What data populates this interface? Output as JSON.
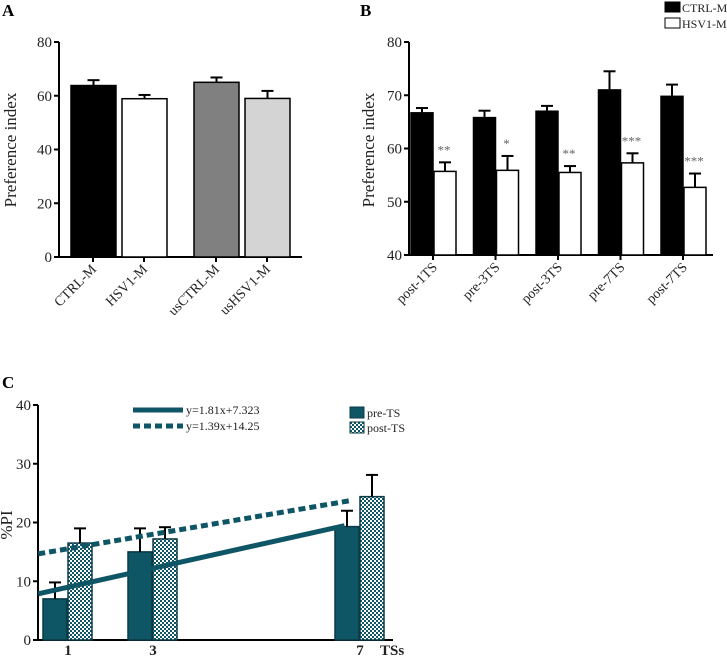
{
  "chart_data": [
    {
      "panel": "A",
      "type": "bar",
      "ylabel": "Preference index",
      "ylim": [
        0,
        80
      ],
      "yticks": [
        "0",
        "20",
        "40",
        "60",
        "80"
      ],
      "categories": [
        "CTRL-M",
        "HSV1-M",
        "usCTRL-M",
        "usHSV1-M"
      ],
      "values": [
        63.8,
        58.9,
        65.0,
        59.0
      ],
      "errors": [
        2.0,
        1.4,
        1.8,
        2.8
      ],
      "colors": [
        "#000000",
        "#ffffff",
        "#808080",
        "#d4d4d4"
      ]
    },
    {
      "panel": "B",
      "type": "bar",
      "ylabel": "Preference index",
      "ylim": [
        40,
        80
      ],
      "yticks": [
        "40",
        "50",
        "60",
        "70",
        "80"
      ],
      "categories": [
        "post-1TS",
        "pre-3TS",
        "post-3TS",
        "pre-7TS",
        "post-7TS"
      ],
      "series": [
        {
          "name": "CTRL-M",
          "color": "#000000",
          "values": [
            66.7,
            65.8,
            67.0,
            71.0,
            69.8
          ],
          "errors": [
            0.9,
            1.3,
            1.0,
            3.5,
            2.2
          ]
        },
        {
          "name": "HSV1-M",
          "color": "#ffffff",
          "values": [
            55.7,
            55.9,
            55.5,
            57.3,
            52.7
          ],
          "errors": [
            1.7,
            2.7,
            1.2,
            1.8,
            2.6
          ]
        }
      ],
      "annotations": [
        "**",
        "*",
        "**",
        "***",
        "***"
      ],
      "legend": "top-right"
    },
    {
      "panel": "C",
      "type": "bar",
      "ylabel": "%PI",
      "ylim": [
        0,
        40
      ],
      "yticks": [
        "0",
        "10",
        "20",
        "30",
        "40"
      ],
      "categories": [
        "1",
        "3",
        "7"
      ],
      "xlabel": "TSs",
      "series": [
        {
          "name": "pre-TS",
          "color": "#0e5566",
          "pattern": "solid",
          "values": [
            7.0,
            15.0,
            19.3
          ],
          "errors": [
            2.8,
            4.0,
            2.7
          ]
        },
        {
          "name": "post-TS",
          "color": "#0e5566",
          "pattern": "checker",
          "values": [
            16.5,
            17.2,
            24.4
          ],
          "errors": [
            2.5,
            2.0,
            3.7
          ]
        }
      ],
      "trendlines": [
        {
          "label": "y=1.81x+7.323",
          "style": "solid",
          "slope": 1.81,
          "intercept": 7.323
        },
        {
          "label": "y=1.39x+14.25",
          "style": "dashed",
          "slope": 1.39,
          "intercept": 14.25
        }
      ],
      "legend": "top-right"
    }
  ]
}
